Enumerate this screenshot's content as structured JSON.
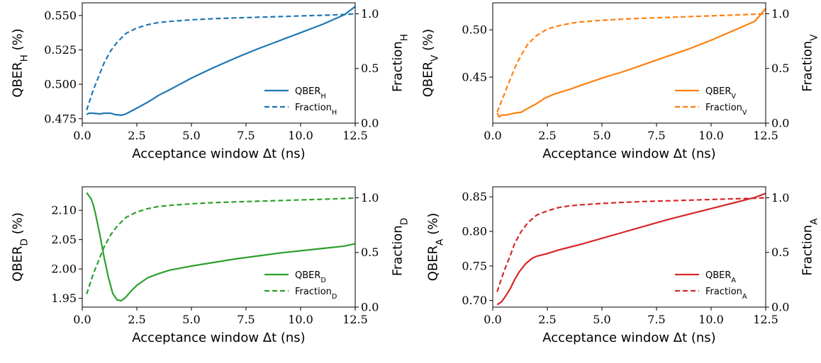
{
  "chart_data": [
    {
      "type": "line",
      "xlabel": "Acceptance window Δt (ns)",
      "ylabel_left": {
        "main": "QBER",
        "sub": "H",
        "suffix": " (%)"
      },
      "ylabel_right": {
        "main": "Fraction",
        "sub": "H"
      },
      "xlim": [
        0,
        12.5
      ],
      "ylim_left": [
        0.4718,
        0.5592
      ],
      "ylim_right": [
        0,
        1.1
      ],
      "x_ticks": [
        "0.0",
        "2.5",
        "5.0",
        "7.5",
        "10.0",
        "12.5"
      ],
      "y_ticks_left": [
        "0.475",
        "0.500",
        "0.525",
        "0.550"
      ],
      "y_tick_values_left": [
        0.475,
        0.5,
        0.525,
        0.55
      ],
      "y_ticks_right": [
        "0.0",
        "0.5",
        "1.0"
      ],
      "y_tick_values_right": [
        0,
        0.5,
        1.0
      ],
      "color": "#1f77b4",
      "legend": [
        {
          "main": "QBER",
          "sub": "H",
          "style": "solid"
        },
        {
          "main": "Fraction",
          "sub": "H",
          "style": "dashed"
        }
      ],
      "series": [
        {
          "name": "QBER_H",
          "axis": "left",
          "style": "solid",
          "x": [
            0.2,
            0.3,
            0.5,
            0.8,
            1.0,
            1.3,
            1.5,
            1.8,
            2.0,
            2.3,
            2.6,
            3.0,
            3.5,
            4.0,
            5.0,
            6.0,
            7.0,
            8.0,
            9.0,
            10.0,
            11.0,
            12.0,
            12.5
          ],
          "y": [
            0.478,
            0.479,
            0.479,
            0.4785,
            0.479,
            0.479,
            0.478,
            0.4775,
            0.4785,
            0.481,
            0.4835,
            0.487,
            0.492,
            0.496,
            0.5045,
            0.512,
            0.519,
            0.5255,
            0.5315,
            0.5375,
            0.5435,
            0.5505,
            0.5565
          ]
        },
        {
          "name": "Fraction_H",
          "axis": "right",
          "style": "dashed",
          "x": [
            0.2,
            0.5,
            0.8,
            1.0,
            1.3,
            1.6,
            2.0,
            2.5,
            3.0,
            3.5,
            4.0,
            5.0,
            6.0,
            7.0,
            8.0,
            9.0,
            10.0,
            11.0,
            12.0,
            12.5
          ],
          "y": [
            0.12,
            0.3,
            0.45,
            0.55,
            0.66,
            0.74,
            0.82,
            0.87,
            0.9,
            0.92,
            0.93,
            0.945,
            0.955,
            0.962,
            0.968,
            0.974,
            0.98,
            0.986,
            0.993,
            1.0
          ]
        }
      ]
    },
    {
      "type": "line",
      "xlabel": "Acceptance window Δt (ns)",
      "ylabel_left": {
        "main": "QBER",
        "sub": "V",
        "suffix": " (%)"
      },
      "ylabel_right": {
        "main": "Fraction",
        "sub": "V"
      },
      "xlim": [
        0,
        12.5
      ],
      "ylim_left": [
        0.4015,
        0.5285
      ],
      "ylim_right": [
        0,
        1.1
      ],
      "x_ticks": [
        "0.0",
        "2.5",
        "5.0",
        "7.5",
        "10.0",
        "12.5"
      ],
      "y_ticks_left": [
        "0.45",
        "0.50"
      ],
      "y_tick_values_left": [
        0.45,
        0.5
      ],
      "y_ticks_right": [
        "0.0",
        "0.5",
        "1.0"
      ],
      "y_tick_values_right": [
        0,
        0.5,
        1.0
      ],
      "color": "#ff7f0e",
      "legend": [
        {
          "main": "QBER",
          "sub": "V",
          "style": "solid"
        },
        {
          "main": "Fraction",
          "sub": "V",
          "style": "dashed"
        }
      ],
      "series": [
        {
          "name": "QBER_V",
          "axis": "left",
          "style": "solid",
          "x": [
            0.2,
            0.3,
            0.4,
            0.6,
            0.8,
            1.0,
            1.3,
            1.6,
            2.0,
            2.4,
            2.8,
            3.5,
            4.0,
            5.0,
            6.0,
            7.0,
            8.0,
            9.0,
            10.0,
            11.0,
            12.0,
            12.5
          ],
          "y": [
            0.412,
            0.408,
            0.41,
            0.41,
            0.411,
            0.412,
            0.413,
            0.417,
            0.422,
            0.428,
            0.432,
            0.437,
            0.441,
            0.449,
            0.456,
            0.464,
            0.472,
            0.48,
            0.489,
            0.499,
            0.509,
            0.5225
          ]
        },
        {
          "name": "Fraction_V",
          "axis": "right",
          "style": "dashed",
          "x": [
            0.2,
            0.5,
            0.8,
            1.0,
            1.3,
            1.6,
            2.0,
            2.5,
            3.0,
            3.5,
            4.0,
            5.0,
            6.0,
            7.0,
            8.0,
            9.0,
            10.0,
            11.0,
            12.0,
            12.5
          ],
          "y": [
            0.1,
            0.25,
            0.4,
            0.5,
            0.62,
            0.72,
            0.8,
            0.86,
            0.89,
            0.91,
            0.925,
            0.94,
            0.952,
            0.96,
            0.967,
            0.974,
            0.981,
            0.988,
            0.996,
            1.0
          ]
        }
      ]
    },
    {
      "type": "line",
      "xlabel": "Acceptance window Δt (ns)",
      "ylabel_left": {
        "main": "QBER",
        "sub": "D",
        "suffix": " (%)"
      },
      "ylabel_right": {
        "main": "Fraction",
        "sub": "D"
      },
      "xlim": [
        0,
        12.5
      ],
      "ylim_left": [
        1.935,
        2.14
      ],
      "ylim_right": [
        0,
        1.1
      ],
      "x_ticks": [
        "0.0",
        "2.5",
        "5.0",
        "7.5",
        "10.0",
        "12.5"
      ],
      "y_ticks_left": [
        "1.95",
        "2.00",
        "2.05",
        "2.10"
      ],
      "y_tick_values_left": [
        1.95,
        2.0,
        2.05,
        2.1
      ],
      "y_ticks_right": [
        "0.0",
        "0.5",
        "1.0"
      ],
      "y_tick_values_right": [
        0,
        0.5,
        1.0
      ],
      "color": "#2ca02c",
      "legend": [
        {
          "main": "QBER",
          "sub": "D",
          "style": "solid"
        },
        {
          "main": "Fraction",
          "sub": "D",
          "style": "dashed"
        }
      ],
      "series": [
        {
          "name": "QBER_D",
          "axis": "left",
          "style": "solid",
          "x": [
            0.2,
            0.3,
            0.4,
            0.5,
            0.6,
            0.8,
            1.0,
            1.2,
            1.4,
            1.6,
            1.8,
            2.0,
            2.2,
            2.5,
            3.0,
            3.5,
            4.0,
            5.0,
            6.0,
            7.0,
            8.0,
            9.0,
            10.0,
            11.0,
            12.0,
            12.5
          ],
          "y": [
            2.13,
            2.125,
            2.12,
            2.11,
            2.095,
            2.06,
            2.02,
            1.985,
            1.958,
            1.947,
            1.946,
            1.952,
            1.961,
            1.972,
            1.985,
            1.992,
            1.998,
            2.005,
            2.011,
            2.017,
            2.022,
            2.027,
            2.031,
            2.035,
            2.039,
            2.043
          ]
        },
        {
          "name": "Fraction_D",
          "axis": "right",
          "style": "dashed",
          "x": [
            0.2,
            0.5,
            0.8,
            1.0,
            1.3,
            1.6,
            2.0,
            2.5,
            3.0,
            3.5,
            4.0,
            5.0,
            6.0,
            7.0,
            8.0,
            9.0,
            10.0,
            11.0,
            12.0,
            12.5
          ],
          "y": [
            0.12,
            0.3,
            0.45,
            0.55,
            0.66,
            0.74,
            0.82,
            0.87,
            0.9,
            0.92,
            0.93,
            0.945,
            0.955,
            0.962,
            0.968,
            0.974,
            0.98,
            0.986,
            0.993,
            0.998
          ]
        }
      ]
    },
    {
      "type": "line",
      "xlabel": "Acceptance window Δt (ns)",
      "ylabel_left": {
        "main": "QBER",
        "sub": "A",
        "suffix": " (%)"
      },
      "ylabel_right": {
        "main": "Fraction",
        "sub": "A"
      },
      "xlim": [
        0,
        12.5
      ],
      "ylim_left": [
        0.6905,
        0.8645
      ],
      "ylim_right": [
        0,
        1.1
      ],
      "x_ticks": [
        "0.0",
        "2.5",
        "5.0",
        "7.5",
        "10.0",
        "12.5"
      ],
      "y_ticks_left": [
        "0.70",
        "0.75",
        "0.80",
        "0.85"
      ],
      "y_tick_values_left": [
        0.7,
        0.75,
        0.8,
        0.85
      ],
      "y_ticks_right": [
        "0.0",
        "0.5",
        "1.0"
      ],
      "y_tick_values_right": [
        0,
        0.5,
        1.0
      ],
      "color": "#d62728",
      "legend": [
        {
          "main": "QBER",
          "sub": "A",
          "style": "solid"
        },
        {
          "main": "Fraction",
          "sub": "A",
          "style": "dashed"
        }
      ],
      "series": [
        {
          "name": "QBER_A",
          "axis": "left",
          "style": "solid",
          "x": [
            0.2,
            0.4,
            0.6,
            0.8,
            1.0,
            1.2,
            1.5,
            1.8,
            2.0,
            2.5,
            3.0,
            3.5,
            4.0,
            5.0,
            6.0,
            7.0,
            8.0,
            9.0,
            10.0,
            11.0,
            12.0,
            12.5
          ],
          "y": [
            0.694,
            0.698,
            0.707,
            0.717,
            0.73,
            0.741,
            0.753,
            0.761,
            0.764,
            0.768,
            0.773,
            0.777,
            0.781,
            0.79,
            0.799,
            0.808,
            0.817,
            0.825,
            0.833,
            0.841,
            0.849,
            0.855
          ]
        },
        {
          "name": "Fraction_A",
          "axis": "right",
          "style": "dashed",
          "x": [
            0.2,
            0.5,
            0.8,
            1.0,
            1.3,
            1.6,
            2.0,
            2.5,
            3.0,
            3.5,
            4.0,
            5.0,
            6.0,
            7.0,
            8.0,
            9.0,
            10.0,
            11.0,
            12.0,
            12.5
          ],
          "y": [
            0.14,
            0.32,
            0.47,
            0.58,
            0.69,
            0.77,
            0.84,
            0.88,
            0.91,
            0.925,
            0.935,
            0.948,
            0.958,
            0.966,
            0.972,
            0.978,
            0.984,
            0.99,
            0.995,
            1.0
          ]
        }
      ]
    }
  ]
}
